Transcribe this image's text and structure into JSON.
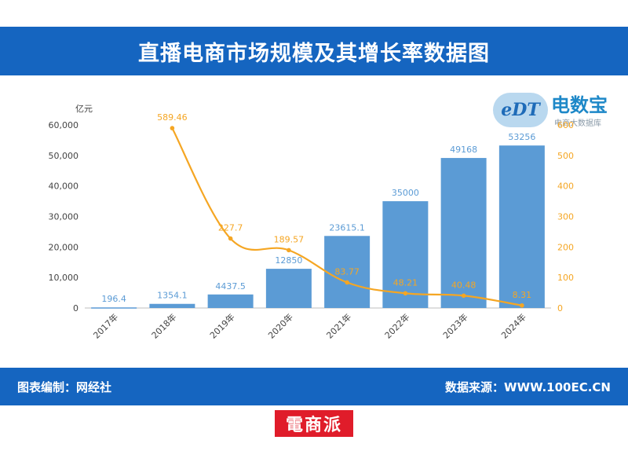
{
  "header": {
    "title": "直播电商市场规模及其增长率数据图"
  },
  "logo": {
    "badge": "eDT",
    "name": "电数宝",
    "tagline": "电商大数据库"
  },
  "footer": {
    "left": "图表编制：网经社",
    "right": "数据来源：WWW.100EC.CN"
  },
  "stamp": {
    "text": "電商派"
  },
  "chart_data": {
    "type": "bar+line",
    "categories": [
      "2017年",
      "2018年",
      "2019年",
      "2020年",
      "2021年",
      "2022年",
      "2023年",
      "2024年"
    ],
    "series": [
      {
        "kind": "bar",
        "axis": "left",
        "color": "#5b9bd5",
        "label_color": "#5b9bd5",
        "values": [
          196.4,
          1354.1,
          4437.5,
          12850,
          23615.1,
          35000,
          49168,
          53256
        ],
        "labels": [
          "196.4",
          "1354.1",
          "4437.5",
          "12850",
          "23615.1",
          "35000",
          "49168",
          "53256"
        ]
      },
      {
        "kind": "line",
        "axis": "right",
        "color": "#f5a623",
        "values": [
          null,
          589.46,
          227.7,
          189.57,
          83.77,
          48.21,
          40.48,
          8.31
        ],
        "labels": [
          "",
          "589.46",
          "227.7",
          "189.57",
          "83.77",
          "48.21",
          "40.48",
          "8.31"
        ]
      }
    ],
    "y_left": {
      "unit": "亿元",
      "min": 0,
      "max": 60000,
      "ticks": [
        "0",
        "10,000",
        "20,000",
        "30,000",
        "40,000",
        "50,000",
        "60,000"
      ]
    },
    "y_right": {
      "unit": "%",
      "min": 0,
      "max": 600,
      "ticks": [
        "0",
        "100",
        "200",
        "300",
        "400",
        "500",
        "600"
      ]
    },
    "grid": false,
    "legend": "none"
  }
}
